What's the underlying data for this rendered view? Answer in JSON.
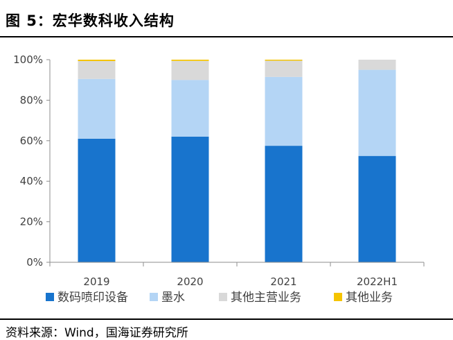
{
  "figure": {
    "title": "图 5：宏华数科收入结构",
    "source": "资料来源：Wind，国海证券研究所"
  },
  "chart_data": {
    "type": "bar",
    "stacked": true,
    "title": "宏华数科收入结构",
    "categories": [
      "2019",
      "2020",
      "2021",
      "2022H1"
    ],
    "series": [
      {
        "name": "数码喷印设备",
        "color": "#1874CD",
        "values": [
          61,
          62,
          57.5,
          52.5
        ]
      },
      {
        "name": "墨水",
        "color": "#B4D5F5",
        "values": [
          29.5,
          28,
          34,
          42.5
        ]
      },
      {
        "name": "其他主营业务",
        "color": "#D9D9D9",
        "values": [
          8.8,
          9.4,
          8,
          5
        ]
      },
      {
        "name": "其他业务",
        "color": "#F5C400",
        "values": [
          0.7,
          0.6,
          0.5,
          0
        ]
      }
    ],
    "ylim": [
      0,
      100
    ],
    "yticks": [
      "0%",
      "20%",
      "40%",
      "60%",
      "80%",
      "100%"
    ],
    "ytick_values": [
      0,
      20,
      40,
      60,
      80,
      100
    ],
    "xlabel": "",
    "ylabel": "",
    "legend_position": "bottom",
    "grid": false
  }
}
